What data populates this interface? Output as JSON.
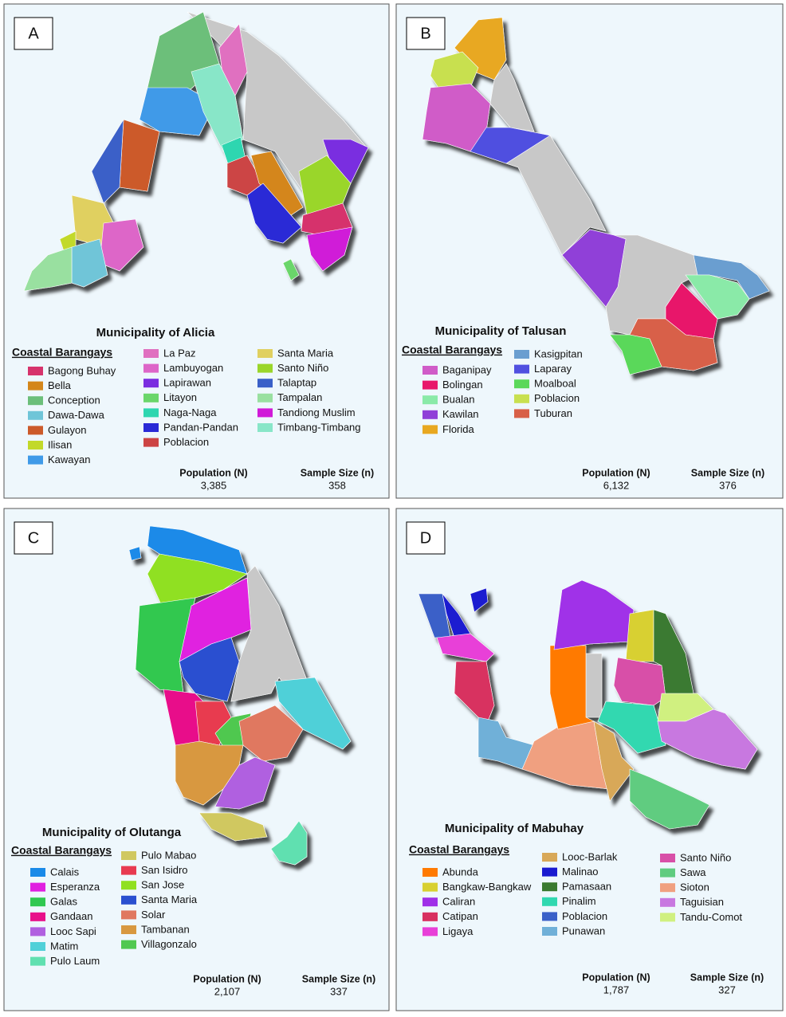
{
  "panels": [
    {
      "label": "A",
      "title": "Municipality of Alicia",
      "legend_heading": "Coastal Barangays",
      "items": [
        {
          "name": "Bagong Buhay",
          "color": "#d6336c"
        },
        {
          "name": "Bella",
          "color": "#d4861a"
        },
        {
          "name": "Conception",
          "color": "#6cbf7a"
        },
        {
          "name": "Dawa-Dawa",
          "color": "#6fc5d8"
        },
        {
          "name": "Gulayon",
          "color": "#cc5a2a"
        },
        {
          "name": "Ilisan",
          "color": "#c2d92a"
        },
        {
          "name": "Kawayan",
          "color": "#3f9ae8"
        },
        {
          "name": "La Paz",
          "color": "#e070c0"
        },
        {
          "name": "Lambuyogan",
          "color": "#dd66c8"
        },
        {
          "name": "Lapirawan",
          "color": "#7a2ee0"
        },
        {
          "name": "Litayon",
          "color": "#6ad66a"
        },
        {
          "name": "Naga-Naga",
          "color": "#2ed6b0"
        },
        {
          "name": "Pandan-Pandan",
          "color": "#2a2ad6"
        },
        {
          "name": "Poblacion",
          "color": "#cc4444"
        },
        {
          "name": "Santa Maria",
          "color": "#e0d060"
        },
        {
          "name": "Santo Niño",
          "color": "#9ad62a"
        },
        {
          "name": "Talaptap",
          "color": "#3a60c8"
        },
        {
          "name": "Tampalan",
          "color": "#99e0a0"
        },
        {
          "name": "Tandiong Muslim",
          "color": "#d01ad8"
        },
        {
          "name": "Timbang-Timbang",
          "color": "#88e6c8"
        }
      ],
      "population": {
        "label": "Population (N)",
        "value": "3,385"
      },
      "sample_size": {
        "label": "Sample Size (n)",
        "value": 358
      }
    },
    {
      "label": "B",
      "title": "Municipality of Talusan",
      "legend_heading": "Coastal Barangays",
      "items": [
        {
          "name": "Baganipay",
          "color": "#d05cc8"
        },
        {
          "name": "Bolingan",
          "color": "#e8186a"
        },
        {
          "name": "Bualan",
          "color": "#8aeaa8"
        },
        {
          "name": "Kawilan",
          "color": "#9040d8"
        },
        {
          "name": "Florida",
          "color": "#e8a820"
        },
        {
          "name": "Kasigpitan",
          "color": "#6a9ed0"
        },
        {
          "name": "Laparay",
          "color": "#5050e0"
        },
        {
          "name": "Moalboal",
          "color": "#5ad85a"
        },
        {
          "name": "Poblacion",
          "color": "#c8e050"
        },
        {
          "name": "Tuburan",
          "color": "#d86048"
        }
      ],
      "population": {
        "label": "Population (N)",
        "value": "6,132"
      },
      "sample_size": {
        "label": "Sample Size (n)",
        "value": 376
      }
    },
    {
      "label": "C",
      "title": "Municipality of Olutanga",
      "legend_heading": "Coastal Barangays",
      "items": [
        {
          "name": "Calais",
          "color": "#1a8ae8"
        },
        {
          "name": "Esperanza",
          "color": "#e020e0"
        },
        {
          "name": "Galas",
          "color": "#30c850"
        },
        {
          "name": "Gandaan",
          "color": "#e8108a"
        },
        {
          "name": "Looc Sapi",
          "color": "#b060e0"
        },
        {
          "name": "Matim",
          "color": "#50d0d8"
        },
        {
          "name": "Pulo Laum",
          "color": "#60e0b0"
        },
        {
          "name": "Pulo Mabao",
          "color": "#d0c860"
        },
        {
          "name": "San Isidro",
          "color": "#e83a50"
        },
        {
          "name": "San Jose",
          "color": "#90e020"
        },
        {
          "name": "Santa Maria",
          "color": "#2a50d0"
        },
        {
          "name": "Solar",
          "color": "#e07860"
        },
        {
          "name": "Tambanan",
          "color": "#d89840"
        },
        {
          "name": "Villagonzalo",
          "color": "#50c850"
        }
      ],
      "population": {
        "label": "Population (N)",
        "value": "2,107"
      },
      "sample_size": {
        "label": "Sample Size (n)",
        "value": 337
      }
    },
    {
      "label": "D",
      "title": "Municipality of Mabuhay",
      "legend_heading": "Coastal Barangays",
      "items": [
        {
          "name": "Abunda",
          "color": "#ff7a00"
        },
        {
          "name": "Bangkaw-Bangkaw",
          "color": "#d8d030"
        },
        {
          "name": "Caliran",
          "color": "#a030e8"
        },
        {
          "name": "Catipan",
          "color": "#d83060"
        },
        {
          "name": "Ligaya",
          "color": "#e840d8"
        },
        {
          "name": "Looc-Barlak",
          "color": "#d8a858"
        },
        {
          "name": "Malinao",
          "color": "#1a1ad0"
        },
        {
          "name": "Pamasaan",
          "color": "#3a7a30"
        },
        {
          "name": "Pinalim",
          "color": "#30d8b0"
        },
        {
          "name": "Poblacion",
          "color": "#3a60c8"
        },
        {
          "name": "Punawan",
          "color": "#70b0d8"
        },
        {
          "name": "Santo Niño",
          "color": "#d850a8"
        },
        {
          "name": "Sawa",
          "color": "#60cc80"
        },
        {
          "name": "Sioton",
          "color": "#f0a080"
        },
        {
          "name": "Taguisian",
          "color": "#c878e0"
        },
        {
          "name": "Tandu-Comot",
          "color": "#d0f080"
        }
      ],
      "population": {
        "label": "Population (N)",
        "value": "1,787"
      },
      "sample_size": {
        "label": "Sample Size (n)",
        "value": 327
      }
    }
  ]
}
